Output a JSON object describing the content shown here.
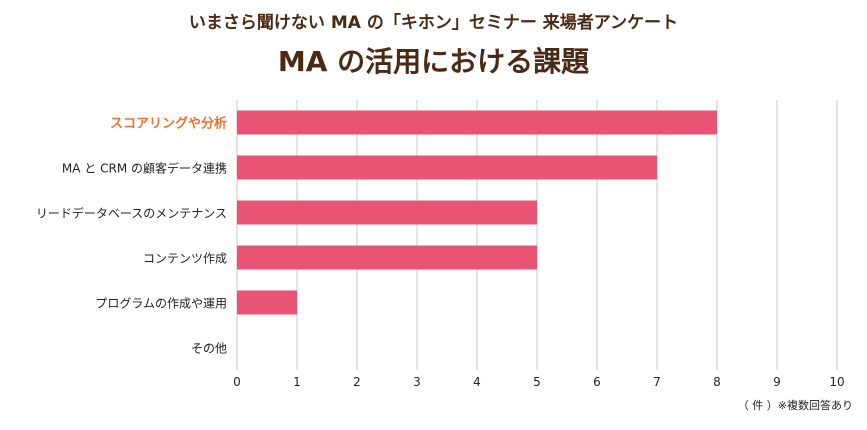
{
  "header": {
    "subtitle": "いまさら聞けない MA の「キホン」セミナー 来場者アンケート",
    "title": "MA の活用における課題"
  },
  "note": "（ 件 ）※複数回答あり",
  "colors": {
    "bar": "#e95474",
    "highlight_label": "#f07030",
    "grid": "#c8c8c8",
    "text": "#222222",
    "title": "#4a2a14"
  },
  "chart_data": {
    "type": "bar",
    "orientation": "horizontal",
    "categories": [
      "スコアリングや分析",
      "MA と CRM の顧客データ連携",
      "リードデータベースのメンテナンス",
      "コンテンツ作成",
      "プログラムの作成や運用",
      "その他"
    ],
    "values": [
      8,
      7,
      5,
      5,
      1,
      0
    ],
    "highlighted_category": "スコアリングや分析",
    "xlim": [
      0,
      10
    ],
    "xticks": [
      "0",
      "1",
      "2",
      "3",
      "4",
      "5",
      "6",
      "7",
      "8",
      "9",
      "10"
    ],
    "grid": true
  }
}
